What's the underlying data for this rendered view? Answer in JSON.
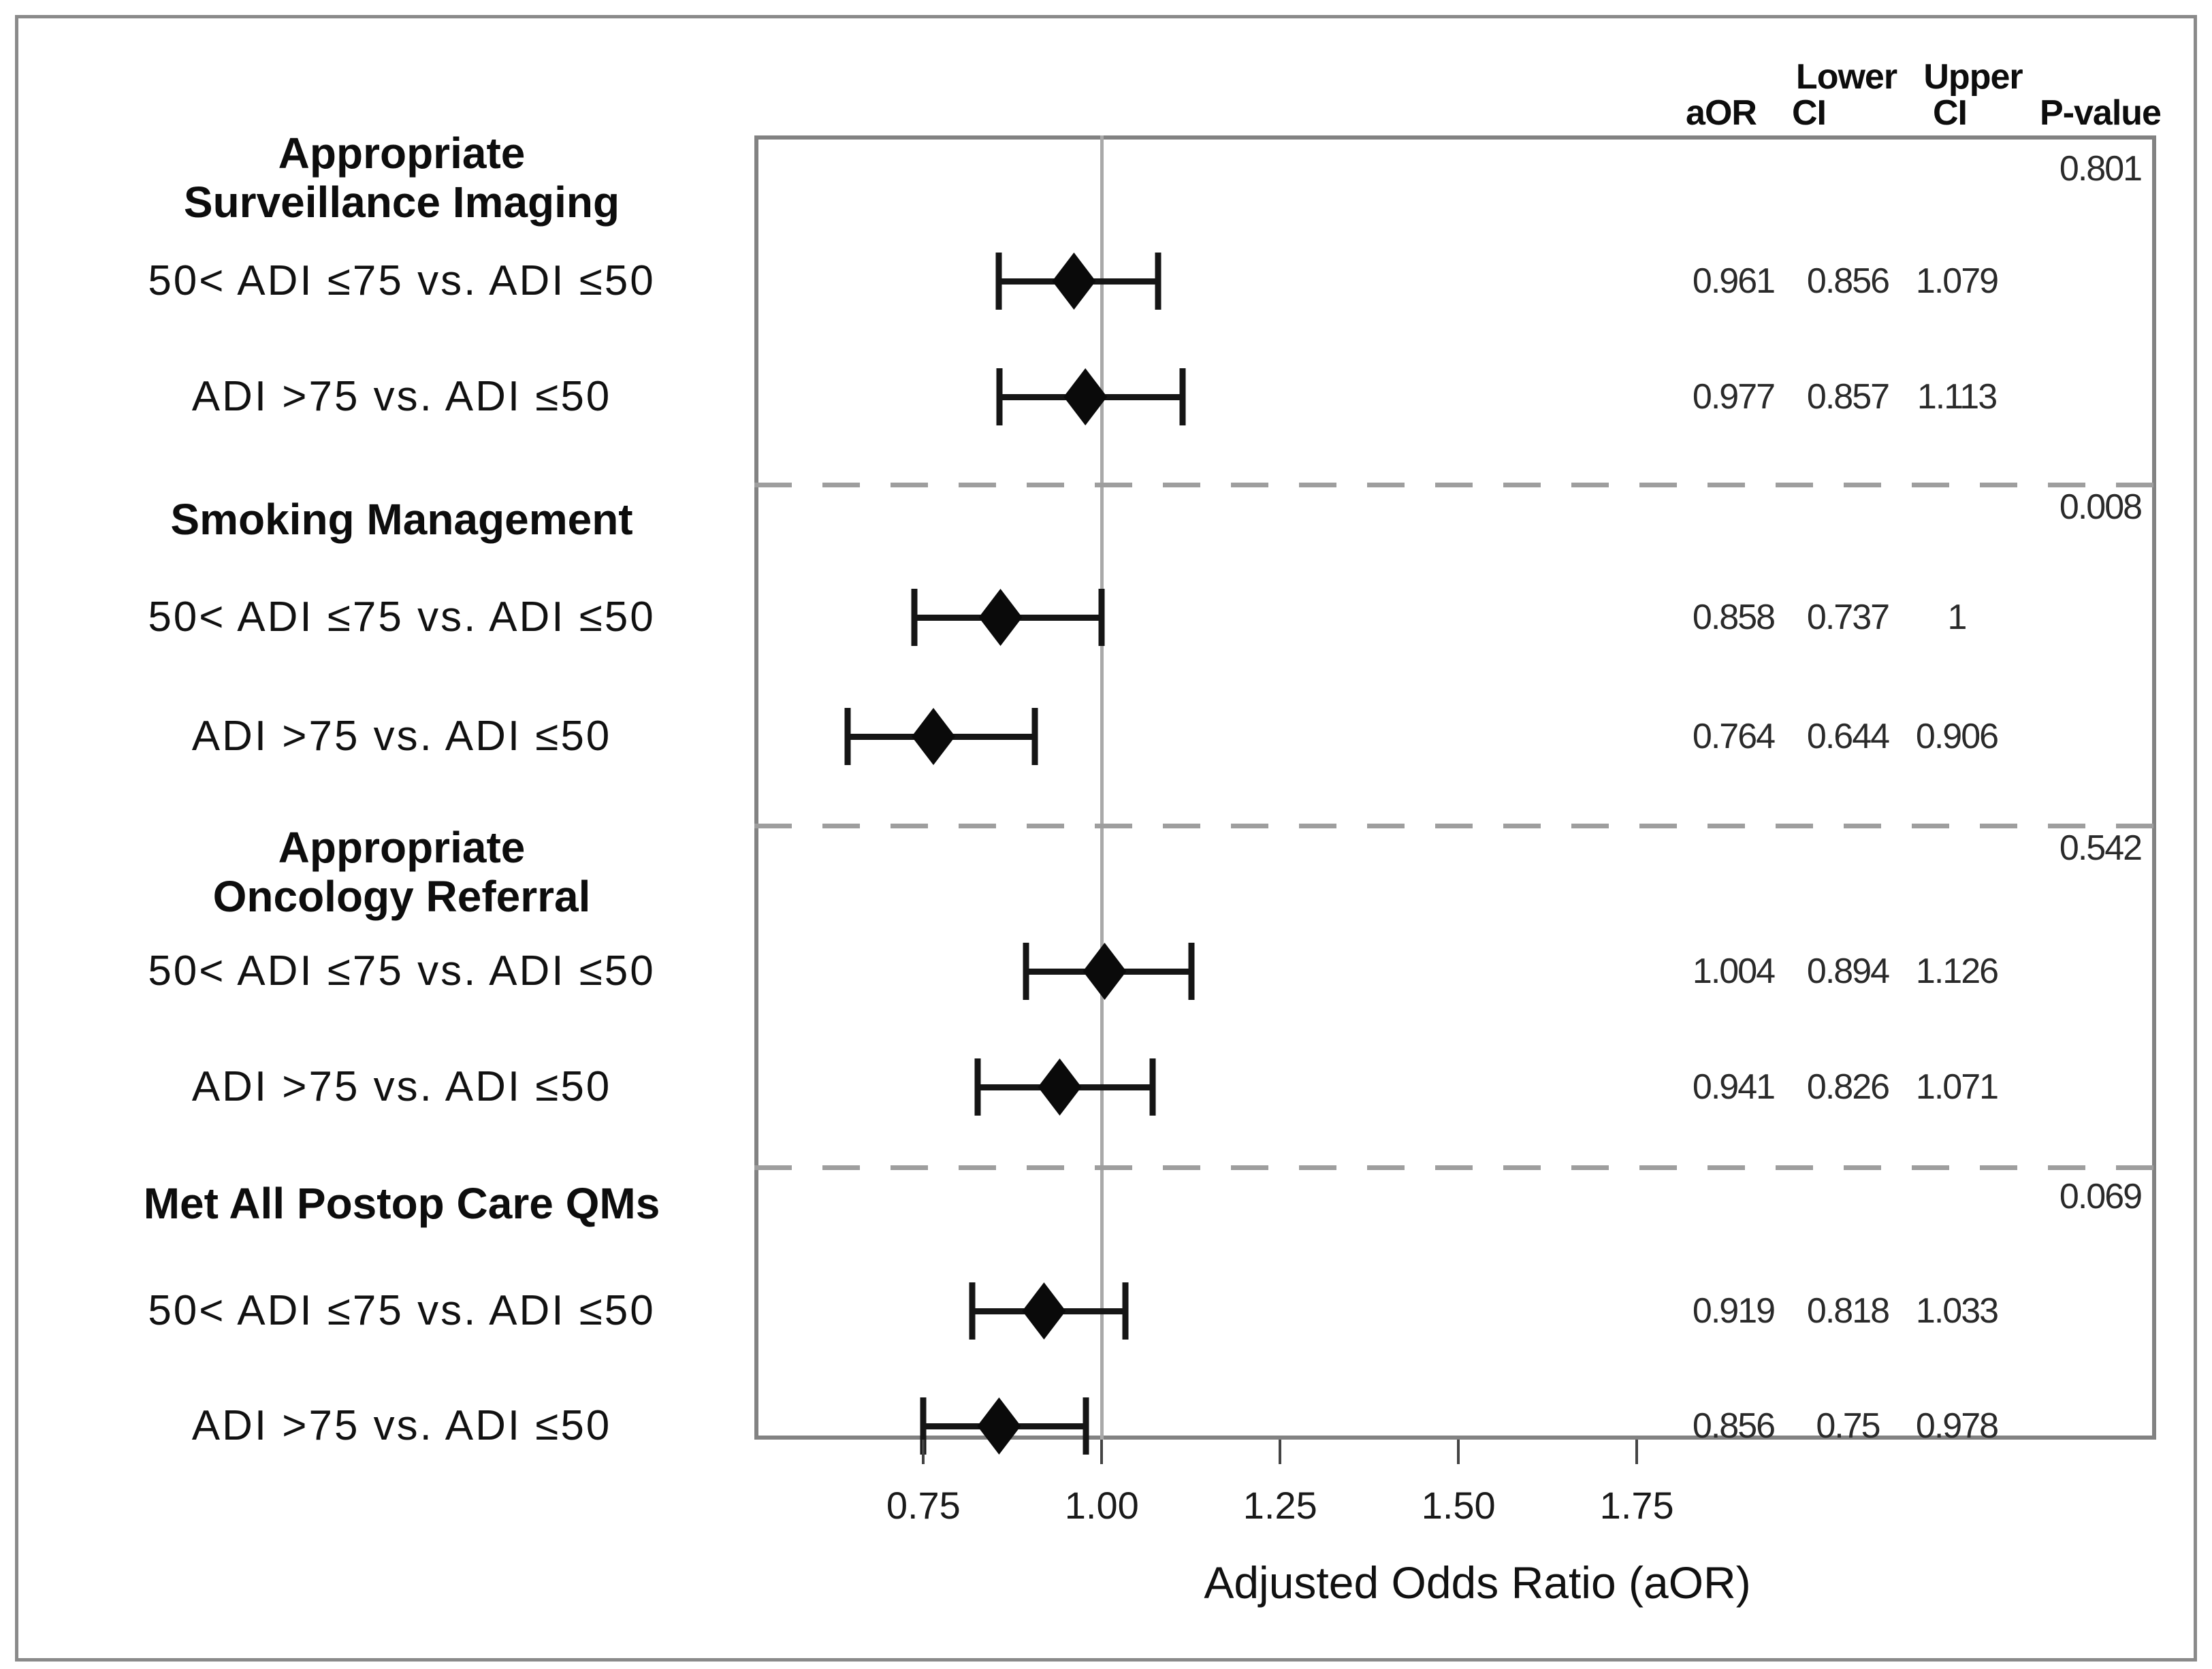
{
  "table_header": {
    "lower": "Lower",
    "upper": "Upper",
    "aor": "aOR",
    "ci_lower": "CI",
    "ci_upper": "CI",
    "p_value": "P-value"
  },
  "x_axis": {
    "title": "Adjusted Odds Ratio (aOR)",
    "tick_labels": [
      "0.75",
      "1.00",
      "1.25",
      "1.50",
      "1.75"
    ]
  },
  "chart_data": {
    "type": "forest_plot_scatter_with_error_bars",
    "xlabel": "Adjusted Odds Ratio (aOR)",
    "x_ticks": [
      0.75,
      1.0,
      1.25,
      1.5,
      1.75
    ],
    "xlim": [
      0.513,
      2.478
    ],
    "reference_line": 1.0,
    "grid": "off",
    "columns": [
      "aOR",
      "Lower CI",
      "Upper CI",
      "P-value"
    ],
    "groups": [
      {
        "title_lines": [
          "Appropriate",
          "Surveillance Imaging"
        ],
        "p_value": "0.801",
        "rows": [
          {
            "label": "50< ADI ≤75 vs. ADI ≤50",
            "aor": 0.961,
            "lower": 0.856,
            "upper": 1.079,
            "display": {
              "aor": "0.961",
              "lower": "0.856",
              "upper": "1.079"
            }
          },
          {
            "label": "ADI >75 vs. ADI ≤50",
            "aor": 0.977,
            "lower": 0.857,
            "upper": 1.113,
            "display": {
              "aor": "0.977",
              "lower": "0.857",
              "upper": "1.113"
            }
          }
        ]
      },
      {
        "title_lines": [
          "Smoking Management"
        ],
        "p_value": "0.008",
        "rows": [
          {
            "label": "50< ADI ≤75 vs. ADI ≤50",
            "aor": 0.858,
            "lower": 0.737,
            "upper": 1.0,
            "display": {
              "aor": "0.858",
              "lower": "0.737",
              "upper": "1"
            }
          },
          {
            "label": "ADI >75 vs. ADI ≤50",
            "aor": 0.764,
            "lower": 0.644,
            "upper": 0.906,
            "display": {
              "aor": "0.764",
              "lower": "0.644",
              "upper": "0.906"
            }
          }
        ]
      },
      {
        "title_lines": [
          "Appropriate",
          "Oncology Referral"
        ],
        "p_value": "0.542",
        "rows": [
          {
            "label": "50< ADI ≤75 vs. ADI ≤50",
            "aor": 1.004,
            "lower": 0.894,
            "upper": 1.126,
            "display": {
              "aor": "1.004",
              "lower": "0.894",
              "upper": "1.126"
            }
          },
          {
            "label": "ADI >75 vs. ADI ≤50",
            "aor": 0.941,
            "lower": 0.826,
            "upper": 1.071,
            "display": {
              "aor": "0.941",
              "lower": "0.826",
              "upper": "1.071"
            }
          }
        ]
      },
      {
        "title_lines": [
          "Met All Postop Care QMs"
        ],
        "p_value": "0.069",
        "rows": [
          {
            "label": "50< ADI ≤75 vs. ADI ≤50",
            "aor": 0.919,
            "lower": 0.818,
            "upper": 1.033,
            "display": {
              "aor": "0.919",
              "lower": "0.818",
              "upper": "1.033"
            }
          },
          {
            "label": "ADI >75 vs. ADI ≤50",
            "aor": 0.856,
            "lower": 0.75,
            "upper": 0.978,
            "display": {
              "aor": "0.856",
              "lower": "0.75",
              "upper": "0.978"
            }
          }
        ]
      }
    ]
  },
  "colors": {
    "marker": "#0a0a0a",
    "error_bar": "#151515",
    "plot_border": "#828282",
    "outer_border": "#8a8a8a",
    "reference_line": "#a9a9a9",
    "dashed_separator": "#9e9e9e",
    "tick_mark": "#444444",
    "text": "#1a1a1a",
    "background": "#ffffff"
  }
}
